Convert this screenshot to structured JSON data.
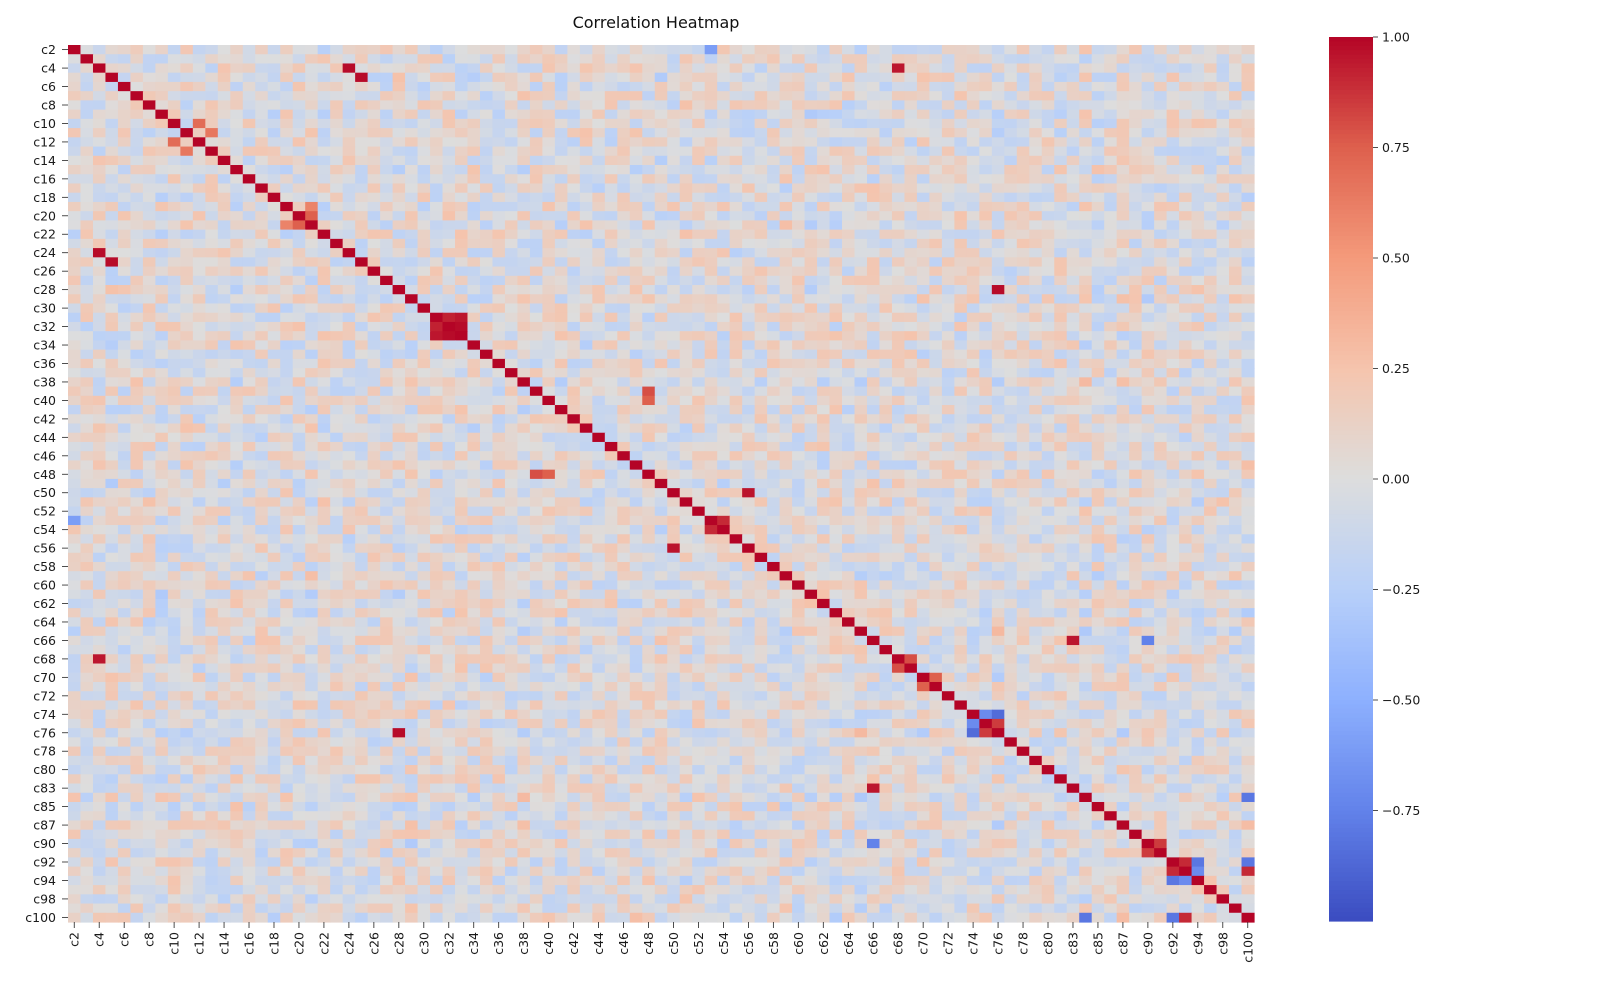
{
  "chart_data": {
    "type": "heatmap",
    "title": "Correlation Heatmap",
    "variables": [
      "c2",
      "c3",
      "c4",
      "c5",
      "c6",
      "c7",
      "c8",
      "c9",
      "c10",
      "c11",
      "c12",
      "c13",
      "c14",
      "c15",
      "c16",
      "c17",
      "c18",
      "c19",
      "c20",
      "c21",
      "c22",
      "c23",
      "c24",
      "c25",
      "c26",
      "c27",
      "c28",
      "c29",
      "c30",
      "c31",
      "c32",
      "c33",
      "c34",
      "c35",
      "c36",
      "c37",
      "c38",
      "c39",
      "c40",
      "c41",
      "c42",
      "c43",
      "c44",
      "c45",
      "c46",
      "c47",
      "c48",
      "c49",
      "c50",
      "c51",
      "c52",
      "c53",
      "c54",
      "c55",
      "c56",
      "c57",
      "c58",
      "c59",
      "c60",
      "c61",
      "c62",
      "c63",
      "c64",
      "c65",
      "c66",
      "c67",
      "c68",
      "c69",
      "c70",
      "c71",
      "c72",
      "c73",
      "c74",
      "c75",
      "c76",
      "c77",
      "c78",
      "c79",
      "c80",
      "c81",
      "c83",
      "c84",
      "c85",
      "c86",
      "c87",
      "c88",
      "c90",
      "c91",
      "c92",
      "c93",
      "c94",
      "c95",
      "c98",
      "c99",
      "c100"
    ],
    "tick_labels_shown": [
      "c2",
      "c4",
      "c6",
      "c8",
      "c10",
      "c12",
      "c14",
      "c16",
      "c18",
      "c20",
      "c22",
      "c24",
      "c26",
      "c28",
      "c30",
      "c32",
      "c34",
      "c36",
      "c38",
      "c40",
      "c42",
      "c44",
      "c46",
      "c48",
      "c50",
      "c52",
      "c54",
      "c56",
      "c58",
      "c60",
      "c62",
      "c64",
      "c66",
      "c68",
      "c70",
      "c72",
      "c74",
      "c76",
      "c78",
      "c80",
      "c83",
      "c85",
      "c87",
      "c90",
      "c92",
      "c94",
      "c98",
      "c100"
    ],
    "diagonal": 1.0,
    "strong_pairs": [
      {
        "a": "c4",
        "b": "c24",
        "value": 0.98
      },
      {
        "a": "c5",
        "b": "c25",
        "value": 0.98
      },
      {
        "a": "c4",
        "b": "c68",
        "value": 0.95
      },
      {
        "a": "c32",
        "b": "c33",
        "value": 0.98
      },
      {
        "a": "c31",
        "b": "c33",
        "value": 0.95
      },
      {
        "a": "c31",
        "b": "c32",
        "value": 0.92
      },
      {
        "a": "c28",
        "b": "c76",
        "value": 0.98
      },
      {
        "a": "c50",
        "b": "c56",
        "value": 0.96
      },
      {
        "a": "c53",
        "b": "c54",
        "value": 0.9
      },
      {
        "a": "c39",
        "b": "c48",
        "value": 0.8
      },
      {
        "a": "c40",
        "b": "c48",
        "value": 0.75
      },
      {
        "a": "c68",
        "b": "c69",
        "value": 0.8
      },
      {
        "a": "c70",
        "b": "c71",
        "value": 0.75
      },
      {
        "a": "c66",
        "b": "c83",
        "value": 0.95
      },
      {
        "a": "c75",
        "b": "c76",
        "value": 0.85
      },
      {
        "a": "c90",
        "b": "c91",
        "value": 0.85
      },
      {
        "a": "c92",
        "b": "c93",
        "value": 0.9
      },
      {
        "a": "c93",
        "b": "c100",
        "value": 0.9
      },
      {
        "a": "c10",
        "b": "c12",
        "value": 0.7
      },
      {
        "a": "c11",
        "b": "c13",
        "value": 0.65
      },
      {
        "a": "c20",
        "b": "c21",
        "value": 0.75
      },
      {
        "a": "c19",
        "b": "c21",
        "value": 0.6
      },
      {
        "a": "c74",
        "b": "c76",
        "value": -0.85
      },
      {
        "a": "c75",
        "b": "c74",
        "value": -0.7
      },
      {
        "a": "c66",
        "b": "c90",
        "value": -0.75
      },
      {
        "a": "c92",
        "b": "c94",
        "value": -0.8
      },
      {
        "a": "c93",
        "b": "c94",
        "value": -0.7
      },
      {
        "a": "c84",
        "b": "c100",
        "value": -0.8
      },
      {
        "a": "c92",
        "b": "c100",
        "value": -0.8
      },
      {
        "a": "c2",
        "b": "c53",
        "value": -0.6
      }
    ],
    "color_scale": {
      "name": "coolwarm",
      "vmin": -1.0,
      "vmax": 1.0,
      "low_color": "#3b4cc0",
      "mid_color": "#dddddd",
      "high_color": "#b40426",
      "ticks": [
        "1.00",
        "0.75",
        "0.50",
        "0.25",
        "0.00",
        "−0.25",
        "−0.50",
        "−0.75"
      ],
      "tick_values": [
        1.0,
        0.75,
        0.5,
        0.25,
        0.0,
        -0.25,
        -0.5,
        -0.75
      ]
    },
    "grid": false,
    "legend": "colorbar-right"
  }
}
